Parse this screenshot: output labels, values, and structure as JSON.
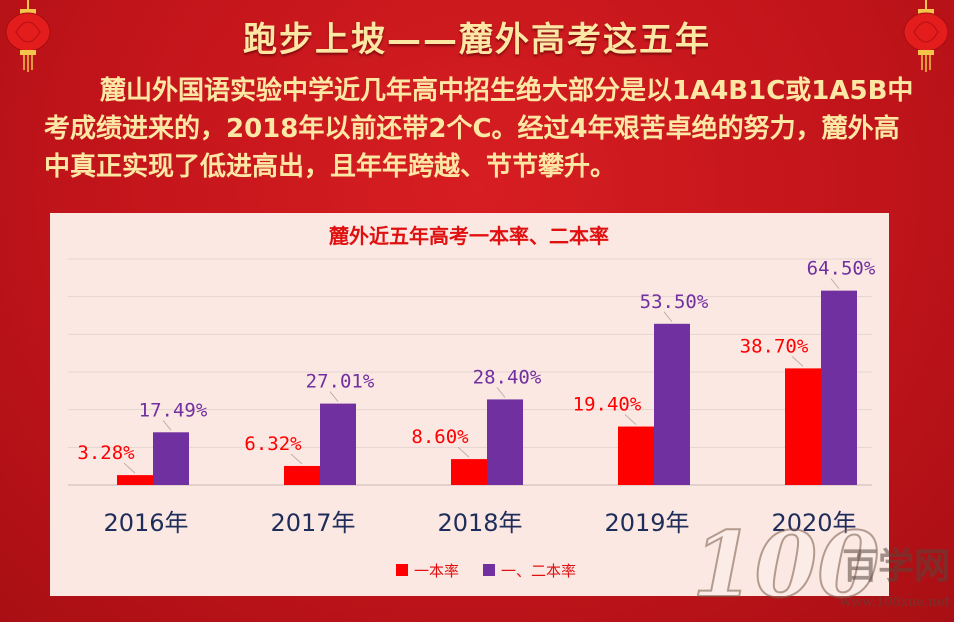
{
  "header": {
    "title": "跑步上坡——麓外高考这五年",
    "intro": "麓山外国语实验中学近几年高中招生绝大部分是以1A4B1C或1A5B中考成绩进来的，2018年以前还带2个C。经过4年艰苦卓绝的努力，麓外高中真正实现了低进高出，且年年跨越、节节攀升。"
  },
  "chart_data": {
    "type": "bar",
    "title": "麓外近五年高考一本率、二本率",
    "categories": [
      "2016年",
      "2017年",
      "2018年",
      "2019年",
      "2020年"
    ],
    "series": [
      {
        "name": "一本率",
        "values": [
          3.28,
          6.32,
          8.6,
          19.4,
          38.7
        ],
        "labels": [
          "3.28%",
          "6.32%",
          "8.60%",
          "19.40%",
          "38.70%"
        ],
        "color": "#ff0000"
      },
      {
        "name": "一、二本率",
        "values": [
          17.49,
          27.01,
          28.4,
          53.5,
          64.5
        ],
        "labels": [
          "17.49%",
          "27.01%",
          "28.40%",
          "53.50%",
          "64.50%"
        ],
        "color": "#7030a0"
      }
    ],
    "ylim": [
      0,
      75
    ],
    "grid": true,
    "legend": "bottom-center"
  },
  "watermark": {
    "number": "100",
    "site_name": "百学网",
    "url": "www.100xue.net"
  },
  "colors": {
    "background": "#c8151b",
    "title_text": "#fde7a4",
    "panel": "#fbe8e3",
    "axis_label": "#1f2d5a"
  }
}
